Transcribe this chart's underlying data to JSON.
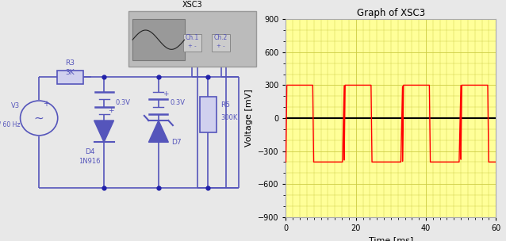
{
  "bg_color": "#e8e8e8",
  "circuit_bg": "#ffffff",
  "graph_title": "Graph of XSC3",
  "graph_bg": "#ffff99",
  "graph_grid_major_color": "#cccc44",
  "graph_grid_minor_color": "#dddd88",
  "graph_line_color": "#ff0000",
  "graph_zero_line_color": "#000000",
  "ylabel": "Voltage [mV]",
  "xlabel": "Time [ms]",
  "ylim": [
    -900,
    900
  ],
  "xlim": [
    0,
    60
  ],
  "yticks": [
    -900,
    -600,
    -300,
    0,
    300,
    600,
    900
  ],
  "xticks": [
    0,
    20,
    40,
    60
  ],
  "circuit_color": "#5555bb",
  "node_color": "#2222aa",
  "component_fill": "#d0d0ee",
  "signal_high": 300,
  "signal_low": -400,
  "freq_hz": 60
}
